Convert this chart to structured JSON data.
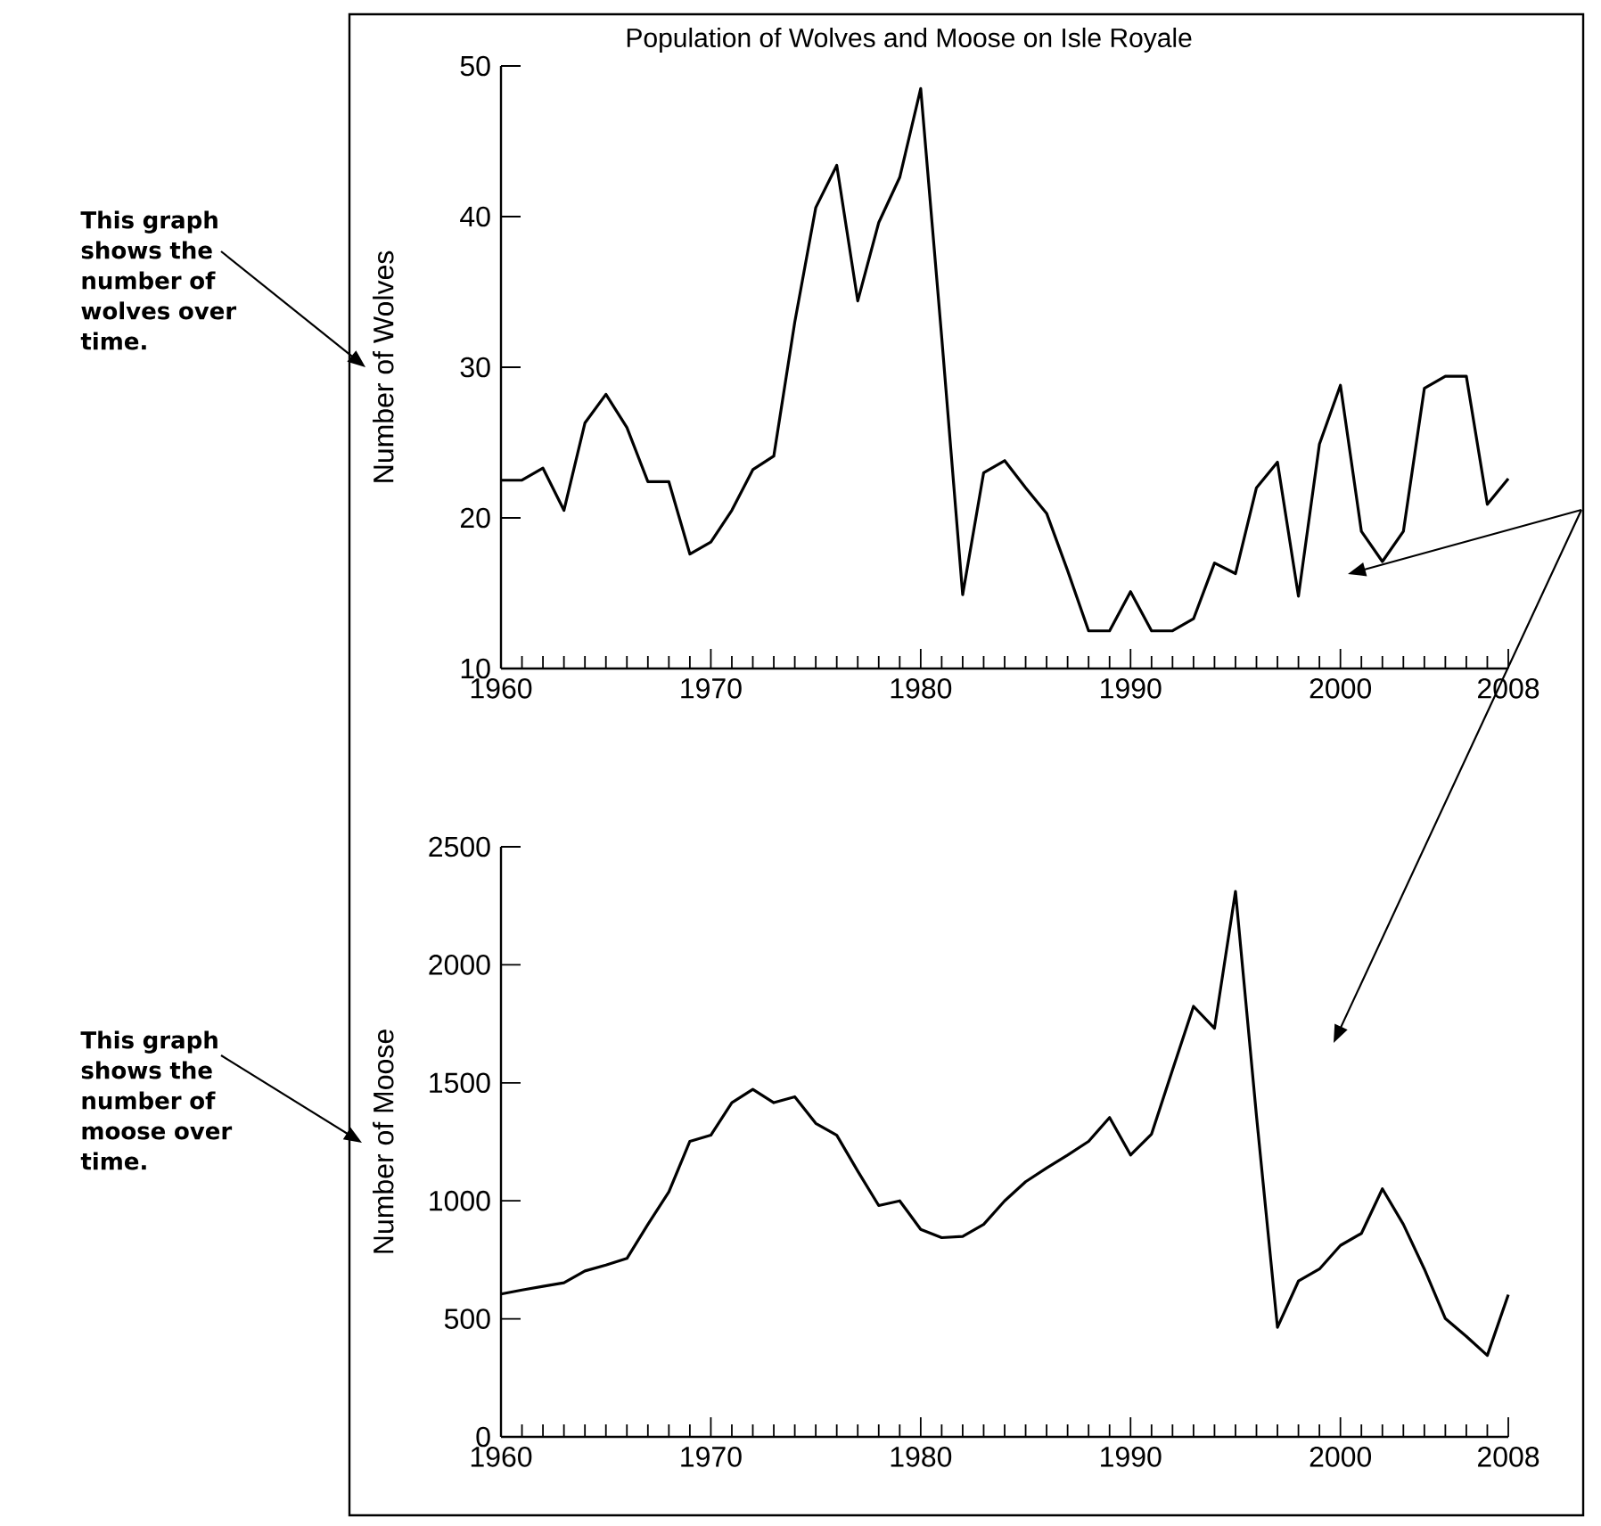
{
  "chart_data": [
    {
      "type": "line",
      "title": "Population of Wolves and Moose on Isle Royale",
      "ylabel": "Number of Wolves",
      "color": "#000000",
      "x": [
        1960,
        1961,
        1962,
        1963,
        1964,
        1965,
        1966,
        1967,
        1968,
        1969,
        1970,
        1971,
        1972,
        1973,
        1974,
        1975,
        1976,
        1977,
        1978,
        1979,
        1980,
        1981,
        1982,
        1983,
        1984,
        1985,
        1986,
        1987,
        1988,
        1989,
        1990,
        1991,
        1992,
        1993,
        1994,
        1995,
        1996,
        1997,
        1998,
        1999,
        2000,
        2001,
        2002,
        2003,
        2004,
        2005,
        2006,
        2007,
        2008
      ],
      "values": [
        22.5,
        22.5,
        23.3,
        20.5,
        26.3,
        28.2,
        26,
        22.4,
        22.4,
        17.6,
        18.4,
        20.5,
        23.2,
        24.1,
        33,
        40.6,
        43.4,
        34.4,
        39.6,
        42.6,
        48.5,
        32,
        14.9,
        23,
        23.8,
        22,
        20.3,
        16.5,
        12.5,
        12.5,
        15.1,
        12.5,
        12.5,
        13.3,
        17,
        16.3,
        22,
        23.7,
        14.8,
        24.9,
        28.8,
        19.1,
        17.1,
        19.1,
        28.6,
        29.4,
        29.4,
        20.9,
        22.6
      ],
      "xlim": [
        1960,
        2008
      ],
      "ylim": [
        10,
        50
      ],
      "yticks": [
        10,
        20,
        30,
        40,
        50
      ],
      "xticks": [
        1960,
        {
          "value": 1961,
          "label": null
        },
        {
          "value": 1962,
          "label": null
        },
        {
          "value": 1963,
          "label": null
        },
        {
          "value": 1964,
          "label": null
        },
        {
          "value": 1965,
          "label": null
        },
        {
          "value": 1966,
          "label": null
        },
        {
          "value": 1967,
          "label": null
        },
        {
          "value": 1968,
          "label": null
        },
        {
          "value": 1969,
          "label": null
        },
        1970,
        {
          "value": 1971,
          "label": null
        },
        {
          "value": 1972,
          "label": null
        },
        {
          "value": 1973,
          "label": null
        },
        {
          "value": 1974,
          "label": null
        },
        {
          "value": 1975,
          "label": null
        },
        {
          "value": 1976,
          "label": null
        },
        {
          "value": 1977,
          "label": null
        },
        {
          "value": 1978,
          "label": null
        },
        {
          "value": 1979,
          "label": null
        },
        1980,
        {
          "value": 1981,
          "label": null
        },
        {
          "value": 1982,
          "label": null
        },
        {
          "value": 1983,
          "label": null
        },
        {
          "value": 1984,
          "label": null
        },
        {
          "value": 1985,
          "label": null
        },
        {
          "value": 1986,
          "label": null
        },
        {
          "value": 1987,
          "label": null
        },
        {
          "value": 1988,
          "label": null
        },
        {
          "value": 1989,
          "label": null
        },
        1990,
        {
          "value": 1991,
          "label": null
        },
        {
          "value": 1992,
          "label": null
        },
        {
          "value": 1993,
          "label": null
        },
        {
          "value": 1994,
          "label": null
        },
        {
          "value": 1995,
          "label": null
        },
        {
          "value": 1996,
          "label": null
        },
        {
          "value": 1997,
          "label": null
        },
        {
          "value": 1998,
          "label": null
        },
        {
          "value": 1999,
          "label": null
        },
        2000,
        {
          "value": 2001,
          "label": null
        },
        {
          "value": 2002,
          "label": null
        },
        {
          "value": 2003,
          "label": null
        },
        {
          "value": 2004,
          "label": null
        },
        {
          "value": 2005,
          "label": null
        },
        {
          "value": 2006,
          "label": null
        },
        {
          "value": 2007,
          "label": null
        },
        2008
      ],
      "annotations": [
        "This graph shows the number of wolves over time."
      ]
    },
    {
      "type": "line",
      "ylabel": "Number of Moose",
      "color": "#000000",
      "x": [
        1960,
        1961,
        1962,
        1963,
        1964,
        1965,
        1966,
        1967,
        1968,
        1969,
        1970,
        1971,
        1972,
        1973,
        1974,
        1975,
        1976,
        1977,
        1978,
        1979,
        1980,
        1981,
        1982,
        1983,
        1984,
        1985,
        1986,
        1987,
        1988,
        1989,
        1990,
        1991,
        1992,
        1993,
        1994,
        1995,
        1996,
        1997,
        1998,
        1999,
        2000,
        2001,
        2002,
        2003,
        2004,
        2005,
        2006,
        2007,
        2008
      ],
      "values": [
        605,
        622,
        638,
        653,
        703,
        728,
        756,
        900,
        1038,
        1252,
        1278,
        1416,
        1472,
        1416,
        1441,
        1328,
        1278,
        1126,
        980,
        1000,
        879,
        844,
        849,
        900,
        1000,
        1081,
        1139,
        1194,
        1252,
        1353,
        1194,
        1283,
        1555,
        1824,
        1731,
        2311,
        1360,
        464,
        660,
        711,
        811,
        862,
        1051,
        900,
        711,
        501,
        426,
        345,
        602
      ],
      "xlim": [
        1960,
        2008
      ],
      "ylim": [
        0,
        2500
      ],
      "yticks": [
        0,
        500,
        1000,
        1500,
        2000,
        2500
      ],
      "xticks": [
        1960,
        {
          "value": 1961,
          "label": null
        },
        {
          "value": 1962,
          "label": null
        },
        {
          "value": 1963,
          "label": null
        },
        {
          "value": 1964,
          "label": null
        },
        {
          "value": 1965,
          "label": null
        },
        {
          "value": 1966,
          "label": null
        },
        {
          "value": 1967,
          "label": null
        },
        {
          "value": 1968,
          "label": null
        },
        {
          "value": 1969,
          "label": null
        },
        1970,
        {
          "value": 1971,
          "label": null
        },
        {
          "value": 1972,
          "label": null
        },
        {
          "value": 1973,
          "label": null
        },
        {
          "value": 1974,
          "label": null
        },
        {
          "value": 1975,
          "label": null
        },
        {
          "value": 1976,
          "label": null
        },
        {
          "value": 1977,
          "label": null
        },
        {
          "value": 1978,
          "label": null
        },
        {
          "value": 1979,
          "label": null
        },
        1980,
        {
          "value": 1981,
          "label": null
        },
        {
          "value": 1982,
          "label": null
        },
        {
          "value": 1983,
          "label": null
        },
        {
          "value": 1984,
          "label": null
        },
        {
          "value": 1985,
          "label": null
        },
        {
          "value": 1986,
          "label": null
        },
        {
          "value": 1987,
          "label": null
        },
        {
          "value": 1988,
          "label": null
        },
        {
          "value": 1989,
          "label": null
        },
        1990,
        {
          "value": 1991,
          "label": null
        },
        {
          "value": 1992,
          "label": null
        },
        {
          "value": 1993,
          "label": null
        },
        {
          "value": 1994,
          "label": null
        },
        {
          "value": 1995,
          "label": null
        },
        {
          "value": 1996,
          "label": null
        },
        {
          "value": 1997,
          "label": null
        },
        {
          "value": 1998,
          "label": null
        },
        {
          "value": 1999,
          "label": null
        },
        2000,
        {
          "value": 2001,
          "label": null
        },
        {
          "value": 2002,
          "label": null
        },
        {
          "value": 2003,
          "label": null
        },
        {
          "value": 2004,
          "label": null
        },
        {
          "value": 2005,
          "label": null
        },
        {
          "value": 2006,
          "label": null
        },
        {
          "value": 2007,
          "label": null
        },
        2008
      ],
      "annotations": [
        "This graph shows the number of moose over time."
      ]
    }
  ]
}
